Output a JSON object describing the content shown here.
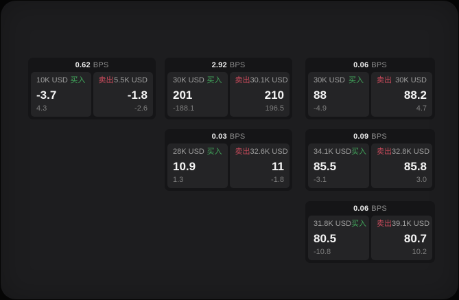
{
  "labels": {
    "bps_unit": "BPS",
    "buy": "买入",
    "sell": "卖出"
  },
  "colors": {
    "buy": "#42a85c",
    "sell": "#cc4b5c",
    "page_bg": "#1d1d1f",
    "card_bg": "#151517",
    "panel_bg": "#242426"
  },
  "cards": [
    {
      "bps": "0.62",
      "buy": {
        "amount": "10K USD",
        "price": "-3.7",
        "delta": "4.3"
      },
      "sell": {
        "amount": "5.5K USD",
        "price": "-1.8",
        "delta": "-2.6"
      }
    },
    {
      "bps": "2.92",
      "buy": {
        "amount": "30K USD",
        "price": "201",
        "delta": "-188.1"
      },
      "sell": {
        "amount": "30.1K USD",
        "price": "210",
        "delta": "196.5"
      }
    },
    {
      "bps": "0.06",
      "buy": {
        "amount": "30K USD",
        "price": "88",
        "delta": "-4.9"
      },
      "sell": {
        "amount": "30K USD",
        "price": "88.2",
        "delta": "4.7"
      }
    },
    {
      "bps": "0.03",
      "buy": {
        "amount": "28K USD",
        "price": "10.9",
        "delta": "1.3"
      },
      "sell": {
        "amount": "32.6K USD",
        "price": "11",
        "delta": "-1.8"
      }
    },
    {
      "bps": "0.09",
      "buy": {
        "amount": "34.1K USD",
        "price": "85.5",
        "delta": "-3.1"
      },
      "sell": {
        "amount": "32.8K USD",
        "price": "85.8",
        "delta": "3.0"
      }
    },
    {
      "bps": "0.06",
      "buy": {
        "amount": "31.8K USD",
        "price": "80.5",
        "delta": "-10.8"
      },
      "sell": {
        "amount": "39.1K USD",
        "price": "80.7",
        "delta": "10.2"
      }
    }
  ]
}
